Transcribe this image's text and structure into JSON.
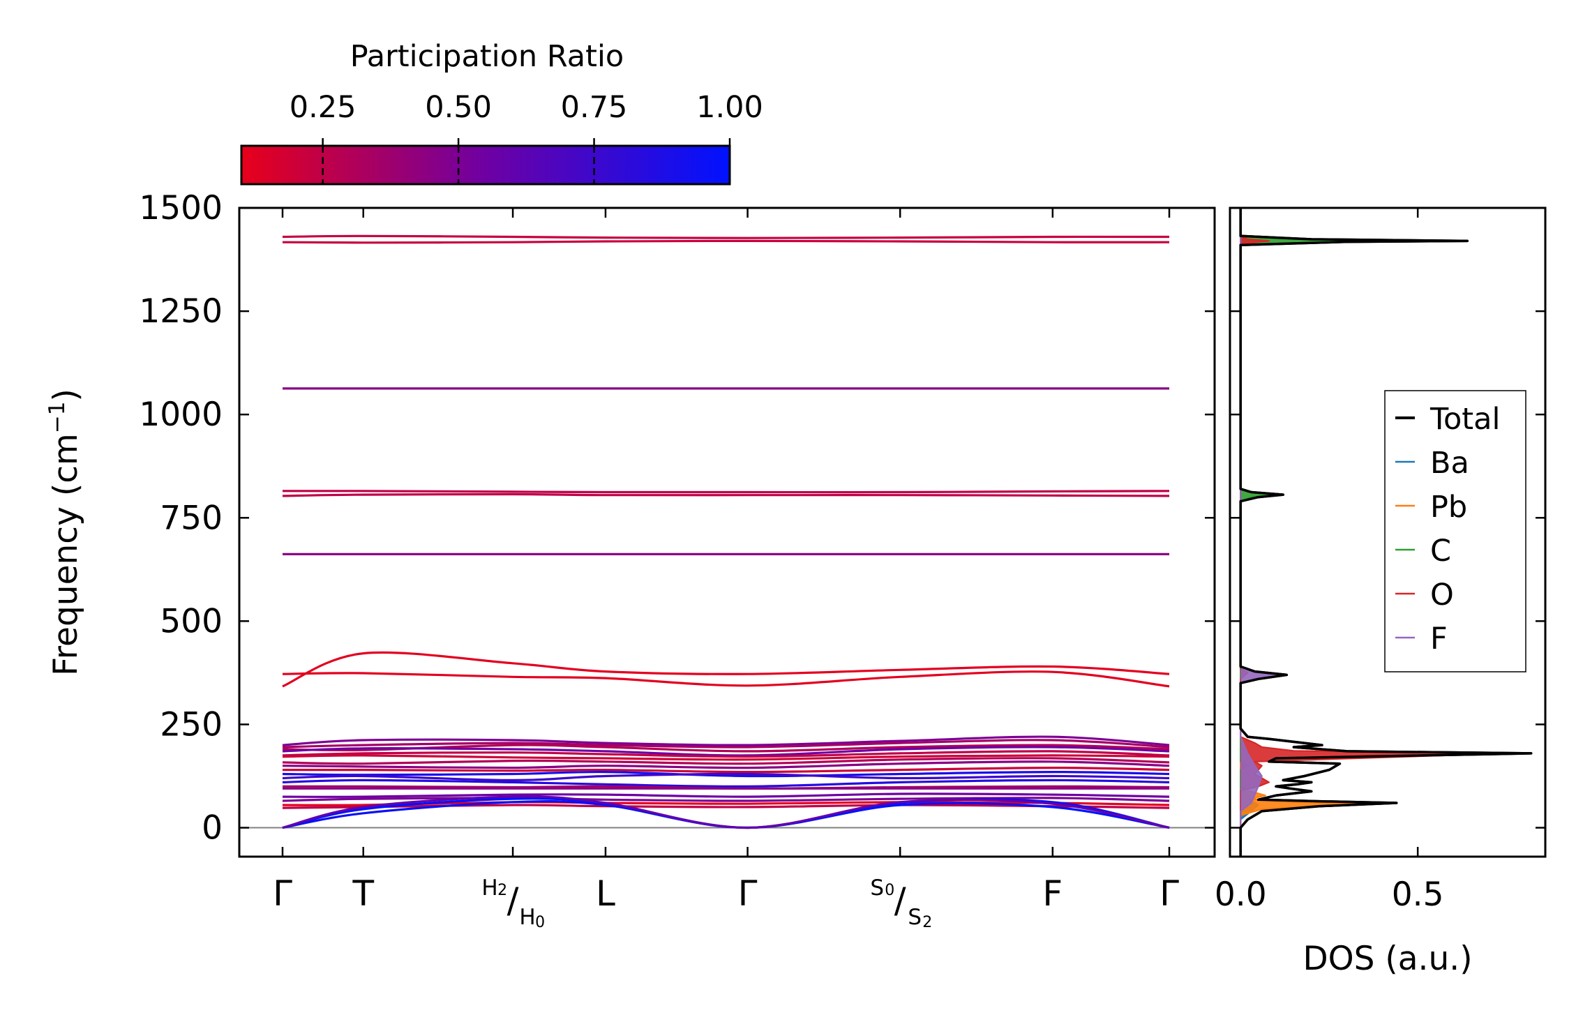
{
  "chart_data": [
    {
      "type": "line",
      "subtype": "phonon-band-structure",
      "ylabel": "Frequency (cm⁻¹)",
      "ylim": [
        -70,
        1500
      ],
      "yticks": [
        0,
        250,
        500,
        750,
        1000,
        1250,
        1500
      ],
      "ytick_labels": [
        "0",
        "250",
        "500",
        "750",
        "1000",
        "1250",
        "1500"
      ],
      "x_segments": [
        0,
        0.54,
        1.54,
        2.16,
        3.11,
        4.13,
        5.15,
        5.93
      ],
      "xtick_labels": [
        {
          "main": "Γ"
        },
        {
          "main": "T"
        },
        {
          "num": "H",
          "numsub": "2",
          "den": "H",
          "densub": "0"
        },
        {
          "main": "L"
        },
        {
          "main": "Γ"
        },
        {
          "num": "S",
          "numsub": "0",
          "den": "S",
          "densub": "2"
        },
        {
          "main": "F"
        },
        {
          "main": "Γ"
        }
      ],
      "colorbar": {
        "label": "Participation Ratio",
        "range": [
          0.1,
          1.0
        ],
        "ticks": [
          0.25,
          0.5,
          0.75,
          1.0
        ],
        "tick_labels": [
          "0.25",
          "0.50",
          "0.75",
          "1.00"
        ],
        "cmap_low": "#e8001a",
        "cmap_mid": "#6e00a3",
        "cmap_high": "#0012ff"
      },
      "bands_note": "frequencies (cm⁻¹) at points Γ,T,H,L,Γ,S,F,Γ; pr = participation ratio",
      "bands": [
        {
          "f": [
            1430,
            1432,
            1430,
            1428,
            1427,
            1428,
            1430,
            1430
          ],
          "pr": 0.22
        },
        {
          "f": [
            1417,
            1416,
            1417,
            1419,
            1420,
            1419,
            1417,
            1417
          ],
          "pr": 0.22
        },
        {
          "f": [
            1063,
            1063,
            1063,
            1063,
            1063,
            1063,
            1063,
            1063
          ],
          "pr": 0.45
        },
        {
          "f": [
            815,
            815,
            813,
            812,
            812,
            812,
            814,
            815
          ],
          "pr": 0.25
        },
        {
          "f": [
            803,
            806,
            807,
            805,
            805,
            805,
            804,
            803
          ],
          "pr": 0.25
        },
        {
          "f": [
            662,
            662,
            662,
            662,
            662,
            662,
            662,
            662
          ],
          "pr": 0.45
        },
        {
          "f": [
            342,
            422,
            398,
            378,
            372,
            382,
            390,
            372
          ],
          "pr": 0.12
        },
        {
          "f": [
            372,
            374,
            365,
            362,
            344,
            365,
            377,
            342
          ],
          "pr": 0.12
        },
        {
          "f": [
            200,
            212,
            212,
            205,
            200,
            210,
            220,
            200
          ],
          "pr": 0.5
        },
        {
          "f": [
            195,
            200,
            205,
            200,
            195,
            205,
            212,
            195
          ],
          "pr": 0.35
        },
        {
          "f": [
            190,
            188,
            200,
            195,
            185,
            195,
            200,
            190
          ],
          "pr": 0.3
        },
        {
          "f": [
            185,
            192,
            190,
            185,
            175,
            190,
            195,
            185
          ],
          "pr": 0.55
        },
        {
          "f": [
            175,
            180,
            182,
            178,
            172,
            180,
            185,
            175
          ],
          "pr": 0.25
        },
        {
          "f": [
            172,
            175,
            170,
            168,
            165,
            172,
            175,
            172
          ],
          "pr": 0.2
        },
        {
          "f": [
            158,
            155,
            162,
            160,
            155,
            165,
            168,
            158
          ],
          "pr": 0.3
        },
        {
          "f": [
            150,
            148,
            145,
            150,
            145,
            155,
            160,
            150
          ],
          "pr": 0.45
        },
        {
          "f": [
            140,
            140,
            138,
            140,
            135,
            140,
            145,
            140
          ],
          "pr": 0.2
        },
        {
          "f": [
            130,
            128,
            130,
            135,
            125,
            130,
            135,
            130
          ],
          "pr": 0.9
        },
        {
          "f": [
            120,
            125,
            115,
            125,
            130,
            120,
            125,
            120
          ],
          "pr": 0.75
        },
        {
          "f": [
            110,
            115,
            110,
            105,
            100,
            110,
            115,
            110
          ],
          "pr": 0.85
        },
        {
          "f": [
            100,
            100,
            98,
            100,
            95,
            98,
            100,
            98
          ],
          "pr": 0.35
        },
        {
          "f": [
            95,
            95,
            95,
            95,
            95,
            95,
            95,
            95
          ],
          "pr": 0.45
        },
        {
          "f": [
            75,
            75,
            80,
            80,
            75,
            82,
            80,
            75
          ],
          "pr": 0.55
        },
        {
          "f": [
            65,
            70,
            72,
            68,
            65,
            70,
            72,
            65
          ],
          "pr": 0.5
        },
        {
          "f": [
            55,
            55,
            62,
            60,
            58,
            62,
            60,
            55
          ],
          "pr": 0.12
        },
        {
          "f": [
            48,
            50,
            55,
            52,
            50,
            55,
            52,
            48
          ],
          "pr": 0.25
        },
        {
          "f": [
            0,
            45,
            70,
            58,
            0,
            55,
            50,
            0
          ],
          "pr": 1.0
        },
        {
          "f": [
            0,
            35,
            62,
            55,
            0,
            60,
            62,
            0
          ],
          "pr": 0.95
        },
        {
          "f": [
            0,
            50,
            75,
            60,
            0,
            62,
            58,
            0
          ],
          "pr": 0.6
        }
      ]
    },
    {
      "type": "line",
      "subtype": "projected-density-of-states",
      "xlabel": "DOS (a.u.)",
      "xlim": [
        -0.03,
        0.86
      ],
      "xticks": [
        0.0,
        0.5
      ],
      "xtick_labels": [
        "0.0",
        "0.5"
      ],
      "ylim": [
        -70,
        1500
      ],
      "legend_position": "center-right",
      "series": [
        {
          "name": "Total",
          "color": "#000000",
          "points": [
            [
              0,
              -70
            ],
            [
              0,
              0
            ],
            [
              0.02,
              20
            ],
            [
              0.06,
              40
            ],
            [
              0.22,
              52
            ],
            [
              0.44,
              60
            ],
            [
              0.22,
              64
            ],
            [
              0.05,
              68
            ],
            [
              0.1,
              78
            ],
            [
              0.2,
              88
            ],
            [
              0.14,
              95
            ],
            [
              0.1,
              100
            ],
            [
              0.16,
              105
            ],
            [
              0.2,
              110
            ],
            [
              0.12,
              115
            ],
            [
              0.18,
              125
            ],
            [
              0.25,
              140
            ],
            [
              0.28,
              155
            ],
            [
              0.08,
              160
            ],
            [
              0.1,
              168
            ],
            [
              0.82,
              180
            ],
            [
              0.3,
              185
            ],
            [
              0.15,
              195
            ],
            [
              0.23,
              200
            ],
            [
              0.08,
              215
            ],
            [
              0.02,
              220
            ],
            [
              0,
              240
            ],
            [
              0,
              350
            ],
            [
              0.05,
              360
            ],
            [
              0.13,
              370
            ],
            [
              0.04,
              378
            ],
            [
              0,
              390
            ],
            [
              0,
              790
            ],
            [
              0.05,
              800
            ],
            [
              0.12,
              806
            ],
            [
              0.03,
              812
            ],
            [
              0,
              820
            ],
            [
              0,
              1410
            ],
            [
              0.3,
              1418
            ],
            [
              0.64,
              1420
            ],
            [
              0.2,
              1424
            ],
            [
              0,
              1432
            ],
            [
              0,
              1500
            ]
          ]
        },
        {
          "name": "Ba",
          "color": "#1f77b4",
          "points": [
            [
              0,
              -70
            ],
            [
              0,
              20
            ],
            [
              0.03,
              40
            ],
            [
              0.05,
              55
            ],
            [
              0.03,
              65
            ],
            [
              0.02,
              80
            ],
            [
              0,
              95
            ],
            [
              0,
              1500
            ]
          ]
        },
        {
          "name": "Pb",
          "color": "#ff7f0e",
          "points": [
            [
              0,
              -70
            ],
            [
              0,
              30
            ],
            [
              0.06,
              45
            ],
            [
              0.32,
              58
            ],
            [
              0.1,
              63
            ],
            [
              0.03,
              70
            ],
            [
              0.07,
              78
            ],
            [
              0.02,
              90
            ],
            [
              0,
              100
            ],
            [
              0,
              1500
            ]
          ]
        },
        {
          "name": "C",
          "color": "#2ca02c",
          "points": [
            [
              0,
              -70
            ],
            [
              0,
              140
            ],
            [
              0.02,
              150
            ],
            [
              0,
              160
            ],
            [
              0,
              790
            ],
            [
              0.03,
              800
            ],
            [
              0.1,
              806
            ],
            [
              0.02,
              812
            ],
            [
              0,
              820
            ],
            [
              0,
              1410
            ],
            [
              0.25,
              1418
            ],
            [
              0.48,
              1420
            ],
            [
              0.15,
              1424
            ],
            [
              0,
              1432
            ],
            [
              0,
              1500
            ]
          ]
        },
        {
          "name": "O",
          "color": "#d62728",
          "points": [
            [
              0,
              -70
            ],
            [
              0,
              90
            ],
            [
              0.05,
              100
            ],
            [
              0.08,
              110
            ],
            [
              0.04,
              130
            ],
            [
              0.06,
              150
            ],
            [
              0.04,
              160
            ],
            [
              0.76,
              180
            ],
            [
              0.15,
              186
            ],
            [
              0.06,
              195
            ],
            [
              0.04,
              205
            ],
            [
              0,
              220
            ],
            [
              0,
              360
            ],
            [
              0.02,
              375
            ],
            [
              0,
              385
            ],
            [
              0,
              1410
            ],
            [
              0.05,
              1418
            ],
            [
              0.08,
              1420
            ],
            [
              0.02,
              1424
            ],
            [
              0,
              1432
            ],
            [
              0,
              1500
            ]
          ]
        },
        {
          "name": "F",
          "color": "#9467bd",
          "points": [
            [
              0,
              -70
            ],
            [
              0,
              40
            ],
            [
              0.03,
              60
            ],
            [
              0.05,
              100
            ],
            [
              0.06,
              125
            ],
            [
              0.04,
              150
            ],
            [
              0.02,
              180
            ],
            [
              0,
              220
            ],
            [
              0,
              350
            ],
            [
              0.04,
              360
            ],
            [
              0.12,
              370
            ],
            [
              0.03,
              378
            ],
            [
              0,
              390
            ],
            [
              0,
              1500
            ]
          ]
        }
      ]
    }
  ]
}
